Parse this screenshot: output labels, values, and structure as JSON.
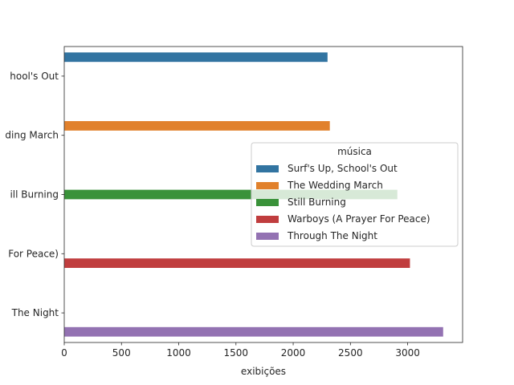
{
  "chart_data": {
    "type": "bar",
    "orientation": "horizontal",
    "title": "",
    "xlabel": "exibições",
    "ylabel": "",
    "xlim": [
      0,
      3480
    ],
    "xticks": [
      0,
      500,
      1000,
      1500,
      2000,
      2500,
      3000
    ],
    "grid": false,
    "categories": [
      "Surf's Up, School's Out",
      "The Wedding March",
      "Still Burning",
      "Warboys (A Prayer For Peace)",
      "Through The Night"
    ],
    "category_labels_visible": [
      "hool's Out",
      "ding March",
      "ill Burning",
      "For Peace)",
      "The Night"
    ],
    "series": [
      {
        "name": "Surf's Up, School's Out",
        "color": "#3274a1",
        "values": [
          2300,
          null,
          null,
          null,
          null
        ]
      },
      {
        "name": "The Wedding March",
        "color": "#e1812c",
        "values": [
          null,
          2320,
          null,
          null,
          null
        ]
      },
      {
        "name": "Still Burning",
        "color": "#3a923a",
        "values": [
          null,
          null,
          2910,
          null,
          null
        ]
      },
      {
        "name": "Warboys (A Prayer For Peace)",
        "color": "#c03d3e",
        "values": [
          null,
          null,
          null,
          3020,
          null
        ]
      },
      {
        "name": "Through The Night",
        "color": "#9372b2",
        "values": [
          null,
          null,
          null,
          null,
          3310
        ]
      }
    ],
    "legend": {
      "title": "música",
      "placement": "center-right"
    }
  }
}
